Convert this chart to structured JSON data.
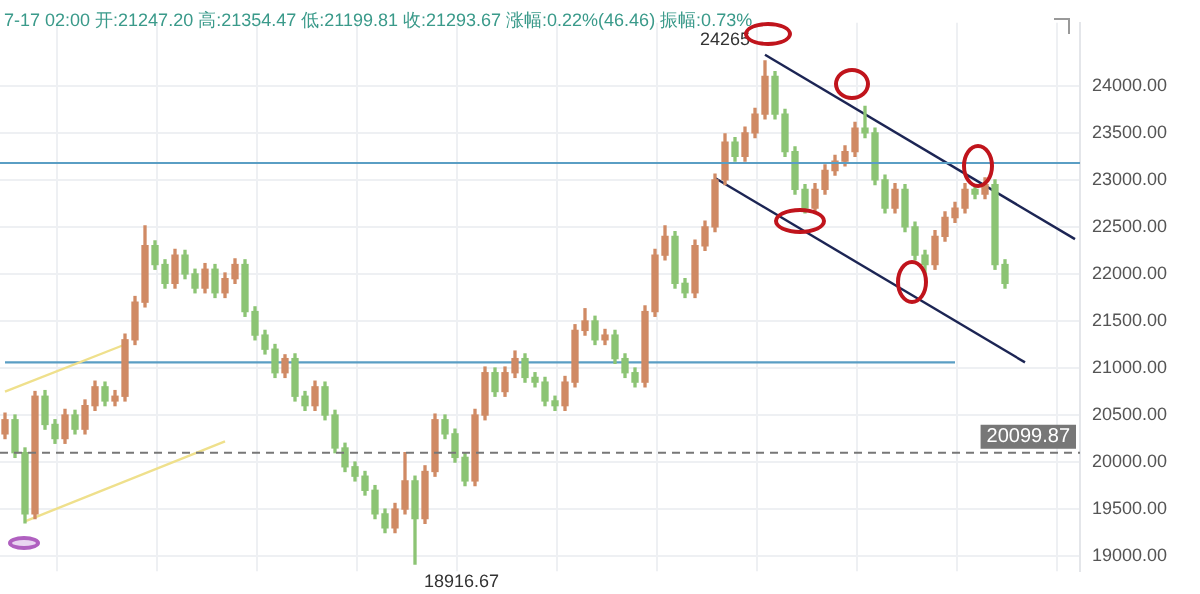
{
  "chart_data": {
    "type": "candlestick",
    "subtitle": "7-17 02:00 开:21247.20 高:21354.47 低:21199.81 收:21293.67 涨幅:0.22%(46.46) 振幅:0.73%",
    "categories": [
      null,
      null,
      null,
      null,
      null,
      null,
      null,
      null,
      null,
      null,
      null,
      null,
      null,
      null,
      null,
      null,
      null,
      null,
      null,
      null,
      null,
      null,
      null,
      null,
      null,
      null,
      null,
      null,
      null,
      null,
      null,
      null,
      null,
      null,
      null,
      null,
      null,
      null,
      null,
      null,
      null,
      null,
      null,
      null,
      null,
      null,
      null,
      null,
      null,
      null,
      null,
      null,
      null,
      null,
      null,
      null,
      null,
      null,
      null,
      null,
      null,
      null,
      null,
      null,
      null,
      null,
      null,
      null,
      null,
      null,
      null,
      null,
      null,
      null,
      null,
      null,
      null,
      null,
      null,
      null,
      null,
      null,
      null,
      null,
      null,
      null,
      null,
      null,
      null,
      null,
      null,
      null,
      null,
      null,
      null,
      null,
      null,
      null,
      null,
      null,
      null,
      null,
      null,
      null,
      null,
      null,
      null,
      null
    ],
    "ohlc": [
      [
        20300,
        20520,
        20250,
        20450
      ],
      [
        20450,
        20500,
        20050,
        20100
      ],
      [
        20100,
        20150,
        19353,
        19450
      ],
      [
        19450,
        20750,
        19400,
        20700
      ],
      [
        20700,
        20760,
        20350,
        20400
      ],
      [
        20400,
        20450,
        20200,
        20250
      ],
      [
        20250,
        20560,
        20200,
        20500
      ],
      [
        20500,
        20550,
        20300,
        20350
      ],
      [
        20350,
        20660,
        20300,
        20600
      ],
      [
        20600,
        20860,
        20550,
        20800
      ],
      [
        20800,
        20850,
        20600,
        20650
      ],
      [
        20650,
        20760,
        20600,
        20700
      ],
      [
        20700,
        21360,
        20650,
        21300
      ],
      [
        21300,
        21760,
        21250,
        21700
      ],
      [
        21700,
        22510,
        21650,
        22300
      ],
      [
        22300,
        22350,
        22050,
        22100
      ],
      [
        22100,
        22150,
        21850,
        21900
      ],
      [
        21900,
        22260,
        21850,
        22200
      ],
      [
        22200,
        22250,
        21950,
        22000
      ],
      [
        22000,
        22050,
        21800,
        21850
      ],
      [
        21850,
        22110,
        21800,
        22050
      ],
      [
        22050,
        22100,
        21750,
        21800
      ],
      [
        21800,
        22010,
        21750,
        21950
      ],
      [
        21950,
        22160,
        21900,
        22100
      ],
      [
        22100,
        22150,
        21550,
        21600
      ],
      [
        21600,
        21650,
        21300,
        21350
      ],
      [
        21350,
        21400,
        21150,
        21200
      ],
      [
        21200,
        21250,
        20900,
        20950
      ],
      [
        20950,
        21140,
        20900,
        21100
      ],
      [
        21100,
        21150,
        20650,
        20700
      ],
      [
        20700,
        20750,
        20550,
        20600
      ],
      [
        20600,
        20860,
        20550,
        20800
      ],
      [
        20800,
        20850,
        20450,
        20500
      ],
      [
        20500,
        20550,
        20100,
        20150
      ],
      [
        20150,
        20200,
        19900,
        19950
      ],
      [
        19950,
        20000,
        19800,
        19850
      ],
      [
        19850,
        19900,
        19650,
        19700
      ],
      [
        19700,
        19750,
        19400,
        19450
      ],
      [
        19450,
        19500,
        19250,
        19300
      ],
      [
        19300,
        19560,
        19250,
        19500
      ],
      [
        19500,
        20100,
        19450,
        19800
      ],
      [
        19800,
        19850,
        18916.67,
        19400
      ],
      [
        19400,
        19960,
        19350,
        19900
      ],
      [
        19900,
        20510,
        19850,
        20450
      ],
      [
        20450,
        20500,
        20250,
        20300
      ],
      [
        20300,
        20350,
        20000,
        20050
      ],
      [
        20050,
        20100,
        19750,
        19800
      ],
      [
        19800,
        20560,
        19750,
        20500
      ],
      [
        20500,
        21010,
        20450,
        20950
      ],
      [
        20950,
        21000,
        20700,
        20750
      ],
      [
        20750,
        21010,
        20700,
        20950
      ],
      [
        20950,
        21180,
        20900,
        21100
      ],
      [
        21100,
        21150,
        20850,
        20900
      ],
      [
        20900,
        20950,
        20800,
        20850
      ],
      [
        20850,
        20900,
        20600,
        20650
      ],
      [
        20650,
        20700,
        20550,
        20600
      ],
      [
        20600,
        20910,
        20550,
        20850
      ],
      [
        20850,
        21460,
        20800,
        21400
      ],
      [
        21400,
        21630,
        21350,
        21500
      ],
      [
        21500,
        21550,
        21250,
        21300
      ],
      [
        21300,
        21410,
        21250,
        21350
      ],
      [
        21350,
        21400,
        21050,
        21100
      ],
      [
        21100,
        21150,
        20900,
        20950
      ],
      [
        20950,
        21000,
        20800,
        20850
      ],
      [
        20850,
        21660,
        20800,
        21600
      ],
      [
        21600,
        22260,
        21550,
        22200
      ],
      [
        22200,
        22510,
        22150,
        22400
      ],
      [
        22400,
        22450,
        21850,
        21900
      ],
      [
        21900,
        21950,
        21750,
        21800
      ],
      [
        21800,
        22360,
        21750,
        22300
      ],
      [
        22300,
        22560,
        22250,
        22500
      ],
      [
        22500,
        23060,
        22450,
        23000
      ],
      [
        23000,
        23490,
        22950,
        23400
      ],
      [
        23400,
        23450,
        23200,
        23250
      ],
      [
        23250,
        23560,
        23200,
        23500
      ],
      [
        23500,
        23760,
        23450,
        23700
      ],
      [
        23700,
        24265,
        23650,
        24100
      ],
      [
        24100,
        24150,
        23650,
        23700
      ],
      [
        23700,
        23750,
        23250,
        23300
      ],
      [
        23300,
        23350,
        22850,
        22900
      ],
      [
        22900,
        22950,
        22650,
        22700
      ],
      [
        22700,
        22960,
        22650,
        22900
      ],
      [
        22900,
        23160,
        22850,
        23100
      ],
      [
        23100,
        23260,
        23050,
        23200
      ],
      [
        23200,
        23360,
        23150,
        23300
      ],
      [
        23300,
        23610,
        23250,
        23550
      ],
      [
        23550,
        23780,
        23450,
        23500
      ],
      [
        23500,
        23550,
        22950,
        23000
      ],
      [
        23000,
        23050,
        22650,
        22700
      ],
      [
        22700,
        22960,
        22650,
        22900
      ],
      [
        22900,
        22950,
        22450,
        22500
      ],
      [
        22500,
        22550,
        22150,
        22200
      ],
      [
        22200,
        22250,
        22000,
        22100
      ],
      [
        22100,
        22460,
        22050,
        22400
      ],
      [
        22400,
        22660,
        22350,
        22600
      ],
      [
        22600,
        22760,
        22550,
        22700
      ],
      [
        22700,
        22960,
        22650,
        22900
      ],
      [
        22900,
        22950,
        22800,
        22850
      ],
      [
        22850,
        23020,
        22800,
        22950
      ],
      [
        22950,
        23000,
        22050,
        22100
      ],
      [
        22100,
        22150,
        21850,
        21900
      ],
      null,
      null,
      null,
      null,
      null,
      null,
      null
    ],
    "colors": [
      "#d08a64",
      "#8cc474",
      "#8cc474",
      "#d08a64",
      "#8cc474",
      "#8cc474",
      "#d08a64",
      "#8cc474",
      "#d08a64",
      "#d08a64",
      "#8cc474",
      "#d08a64",
      "#d08a64",
      "#d08a64",
      "#d08a64",
      "#8cc474",
      "#8cc474",
      "#d08a64",
      "#8cc474",
      "#8cc474",
      "#d08a64",
      "#8cc474",
      "#d08a64",
      "#d08a64",
      "#8cc474",
      "#8cc474",
      "#8cc474",
      "#8cc474",
      "#d08a64",
      "#8cc474",
      "#8cc474",
      "#d08a64",
      "#8cc474",
      "#8cc474",
      "#8cc474",
      "#8cc474",
      "#8cc474",
      "#8cc474",
      "#8cc474",
      "#d08a64",
      "#d08a64",
      "#8cc474",
      "#d08a64",
      "#d08a64",
      "#8cc474",
      "#8cc474",
      "#8cc474",
      "#d08a64",
      "#d08a64",
      "#8cc474",
      "#d08a64",
      "#d08a64",
      "#8cc474",
      "#8cc474",
      "#8cc474",
      "#8cc474",
      "#d08a64",
      "#d08a64",
      "#d08a64",
      "#8cc474",
      "#d08a64",
      "#8cc474",
      "#8cc474",
      "#8cc474",
      "#d08a64",
      "#d08a64",
      "#d08a64",
      "#8cc474",
      "#8cc474",
      "#d08a64",
      "#d08a64",
      "#d08a64",
      "#d08a64",
      "#8cc474",
      "#d08a64",
      "#d08a64",
      "#d08a64",
      "#8cc474",
      "#8cc474",
      "#8cc474",
      "#8cc474",
      "#d08a64",
      "#d08a64",
      "#d08a64",
      "#d08a64",
      "#d08a64",
      "#8cc474",
      "#8cc474",
      "#8cc474",
      "#d08a64",
      "#8cc474",
      "#8cc474",
      "#8cc474",
      "#d08a64",
      "#d08a64",
      "#d08a64",
      "#d08a64",
      "#8cc474",
      "#d08a64",
      "#8cc474",
      "#8cc474",
      null,
      null,
      null,
      null,
      null,
      null,
      null
    ],
    "series": [
      {
        "type": "line",
        "color": "#1c2554",
        "values": [
          null,
          null,
          null,
          null,
          null,
          null,
          null,
          null,
          null,
          null,
          null,
          null,
          null,
          null,
          null,
          null,
          null,
          null,
          null,
          null,
          null,
          null,
          null,
          null,
          null,
          null,
          null,
          null,
          null,
          null,
          null,
          null,
          null,
          null,
          null,
          null,
          null,
          null,
          null,
          null,
          null,
          null,
          null,
          null,
          null,
          null,
          null,
          null,
          null,
          null,
          null,
          null,
          null,
          null,
          null,
          null,
          null,
          null,
          null,
          null,
          null,
          null,
          null,
          null,
          null,
          null,
          null,
          null,
          null,
          null,
          null,
          null,
          null,
          null,
          null,
          null,
          24330,
          null,
          null,
          null,
          null,
          null,
          null,
          null,
          null,
          null,
          null,
          null,
          null,
          null,
          null,
          null,
          null,
          null,
          null,
          null,
          null,
          null,
          null,
          null,
          null,
          null,
          null,
          null,
          null,
          null,
          null,
          22370
        ]
      },
      {
        "type": "line",
        "color": "#1c2554",
        "values": [
          null,
          null,
          null,
          null,
          null,
          null,
          null,
          null,
          null,
          null,
          null,
          null,
          null,
          null,
          null,
          null,
          null,
          null,
          null,
          null,
          null,
          null,
          null,
          null,
          null,
          null,
          null,
          null,
          null,
          null,
          null,
          null,
          null,
          null,
          null,
          null,
          null,
          null,
          null,
          null,
          null,
          null,
          null,
          null,
          null,
          null,
          null,
          null,
          null,
          null,
          null,
          null,
          null,
          null,
          null,
          null,
          null,
          null,
          null,
          null,
          null,
          null,
          null,
          null,
          null,
          null,
          null,
          null,
          null,
          null,
          null,
          23020,
          null,
          null,
          null,
          null,
          null,
          null,
          null,
          null,
          null,
          null,
          null,
          null,
          null,
          null,
          null,
          null,
          null,
          null,
          null,
          null,
          null,
          null,
          null,
          null,
          null,
          null,
          null,
          null,
          null,
          null,
          21060,
          null,
          null,
          null,
          null,
          null
        ]
      },
      {
        "type": "line",
        "color": "#efe08c",
        "values": [
          20750,
          null,
          null,
          null,
          null,
          null,
          null,
          null,
          null,
          null,
          null,
          null,
          21250,
          null,
          null,
          null,
          null,
          null,
          null,
          null,
          null,
          null,
          null,
          null,
          null,
          null,
          null,
          null,
          null,
          null,
          null,
          null,
          null,
          null,
          null,
          null,
          null,
          null,
          null,
          null,
          null,
          null,
          null,
          null,
          null,
          null,
          null,
          null,
          null,
          null,
          null,
          null,
          null,
          null,
          null,
          null,
          null,
          null,
          null,
          null,
          null,
          null,
          null,
          null,
          null,
          null,
          null,
          null,
          null,
          null,
          null,
          null,
          null,
          null,
          null,
          null,
          null,
          null,
          null,
          null,
          null,
          null,
          null,
          null,
          null,
          null,
          null,
          null,
          null,
          null,
          null,
          null,
          null,
          null,
          null,
          null,
          null,
          null,
          null,
          null,
          null,
          null,
          null,
          null,
          null,
          null,
          null,
          null
        ]
      },
      {
        "type": "line",
        "color": "#efe08c",
        "values": [
          null,
          null,
          19370,
          null,
          null,
          null,
          null,
          null,
          null,
          null,
          null,
          null,
          null,
          null,
          null,
          null,
          null,
          null,
          null,
          null,
          null,
          null,
          20220,
          null,
          null,
          null,
          null,
          null,
          null,
          null,
          null,
          null,
          null,
          null,
          null,
          null,
          null,
          null,
          null,
          null,
          null,
          null,
          null,
          null,
          null,
          null,
          null,
          null,
          null,
          null,
          null,
          null,
          null,
          null,
          null,
          null,
          null,
          null,
          null,
          null,
          null,
          null,
          null,
          null,
          null,
          null,
          null,
          null,
          null,
          null,
          null,
          null,
          null,
          null,
          null,
          null,
          null,
          null,
          null,
          null,
          null,
          null,
          null,
          null,
          null,
          null,
          null,
          null,
          null,
          null,
          null,
          null,
          null,
          null,
          null,
          null,
          null,
          null,
          null,
          null,
          null,
          null,
          null,
          null,
          null,
          null,
          null,
          null
        ]
      },
      {
        "type": "line",
        "color": "#5a9ec4",
        "values": [
          21060,
          null,
          null,
          null,
          null,
          null,
          null,
          null,
          null,
          null,
          null,
          null,
          null,
          null,
          null,
          null,
          null,
          null,
          null,
          null,
          null,
          null,
          null,
          null,
          null,
          null,
          null,
          null,
          null,
          null,
          null,
          null,
          null,
          null,
          null,
          null,
          null,
          null,
          null,
          null,
          null,
          null,
          null,
          null,
          null,
          null,
          null,
          null,
          null,
          null,
          null,
          null,
          null,
          null,
          null,
          null,
          null,
          null,
          null,
          null,
          null,
          null,
          null,
          null,
          null,
          null,
          null,
          null,
          null,
          null,
          null,
          null,
          null,
          null,
          null,
          null,
          null,
          null,
          null,
          null,
          null,
          null,
          null,
          null,
          null,
          null,
          null,
          null,
          null,
          null,
          null,
          null,
          null,
          null,
          null,
          21060,
          null,
          null,
          null,
          null,
          null,
          null,
          null,
          null,
          null,
          null,
          null,
          null
        ]
      }
    ],
    "ref_lines": [
      {
        "axis": "y",
        "value": 23180,
        "color": "#5a9ec4"
      },
      {
        "axis": "y",
        "value": 20099.87,
        "label": "20099.87",
        "color": "#777777",
        "line_style": "dashed"
      }
    ],
    "annotations": [
      "24265",
      "18916.67"
    ],
    "ylim": [
      18840,
      24670
    ],
    "yticks": [
      {
        "value": 19000,
        "label": "19000.00"
      },
      {
        "value": 19500,
        "label": "19500.00"
      },
      {
        "value": 20000,
        "label": "20000.00"
      },
      {
        "value": 20500,
        "label": "20500.00"
      },
      {
        "value": 21000,
        "label": "21000.00"
      },
      {
        "value": 21500,
        "label": "21500.00"
      },
      {
        "value": 22000,
        "label": "22000.00"
      },
      {
        "value": 22500,
        "label": "22500.00"
      },
      {
        "value": 23000,
        "label": "23000.00"
      },
      {
        "value": 23500,
        "label": "23500.00"
      },
      {
        "value": 24000,
        "label": "24000.00"
      }
    ],
    "tick_labels": "y",
    "grid": true,
    "legend": false
  }
}
